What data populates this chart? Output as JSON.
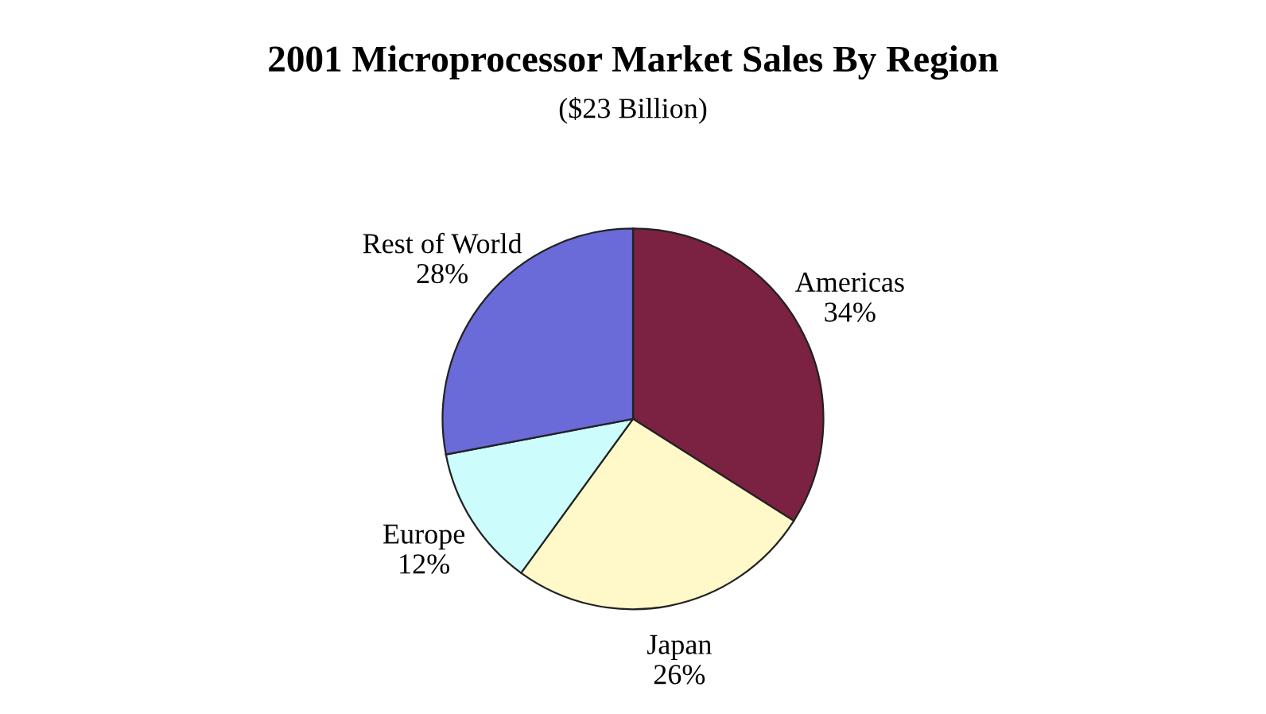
{
  "chart_data": {
    "type": "pie",
    "title": "2001 Microprocessor Market Sales By Region",
    "subtitle": "($23 Billion)",
    "categories": [
      "Americas",
      "Japan",
      "Europe",
      "Rest of World"
    ],
    "values": [
      34,
      26,
      12,
      28
    ],
    "value_labels": [
      "34%",
      "26%",
      "12%",
      "28%"
    ],
    "colors": [
      "#7b2142",
      "#fff8c8",
      "#ccfcfc",
      "#6a6ad8"
    ]
  }
}
